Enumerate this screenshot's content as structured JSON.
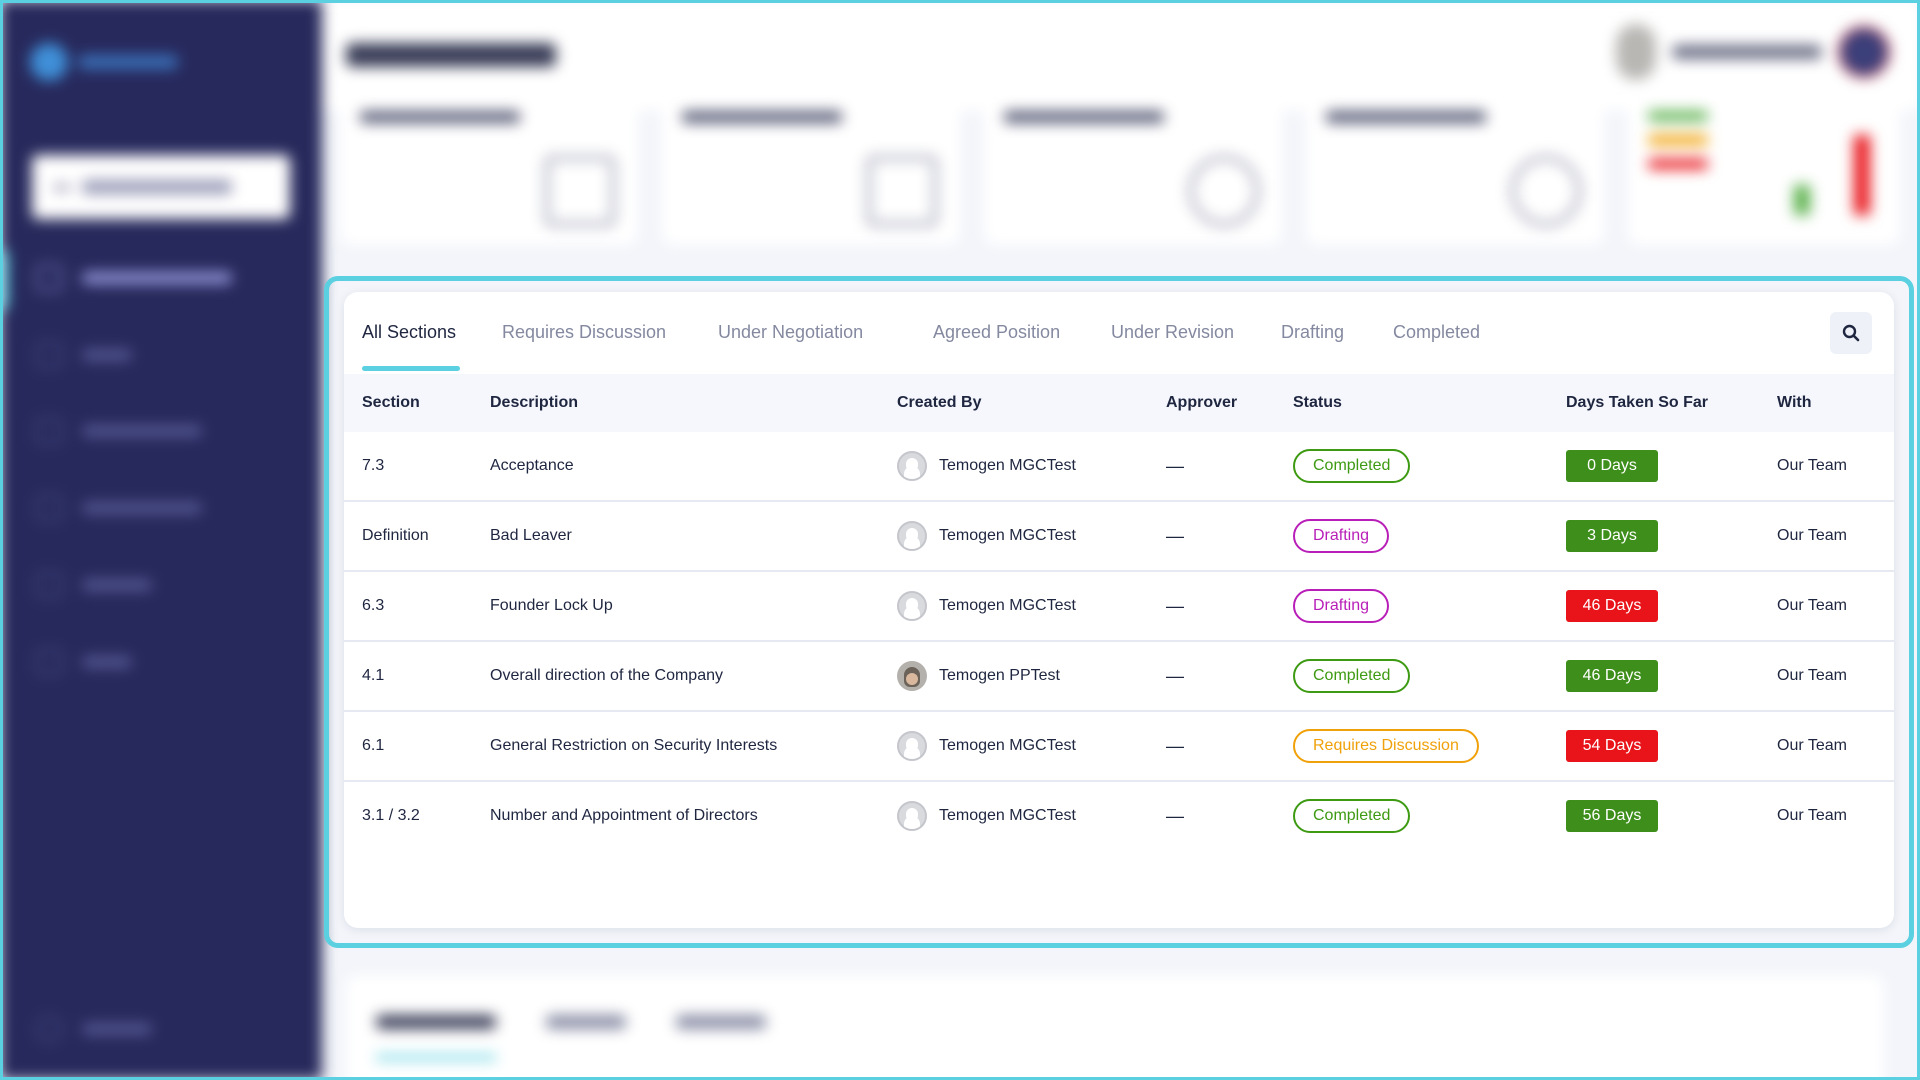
{
  "colors": {
    "accent": "#5ad0e0",
    "sidebar": "#27295c",
    "status_completed": "#3d9a12",
    "status_drafting": "#b81fb8",
    "status_requires_discussion": "#f0a10a",
    "days_green": "#3d8e1a",
    "days_red": "#e8141a"
  },
  "tabs": [
    {
      "label": "All Sections",
      "active": true
    },
    {
      "label": "Requires Discussion",
      "active": false
    },
    {
      "label": "Under Negotiation",
      "active": false
    },
    {
      "label": "Agreed Position",
      "active": false
    },
    {
      "label": "Under Revision",
      "active": false
    },
    {
      "label": "Drafting",
      "active": false
    },
    {
      "label": "Completed",
      "active": false
    }
  ],
  "search_icon": "search-icon",
  "columns": {
    "section": "Section",
    "description": "Description",
    "created_by": "Created By",
    "approver": "Approver",
    "status": "Status",
    "days": "Days Taken So Far",
    "with": "With"
  },
  "rows": [
    {
      "section": "7.3",
      "description": "Acceptance",
      "created_by": "Temogen MGCTest",
      "avatar": "generic",
      "approver": "—",
      "status": "Completed",
      "status_type": "completed",
      "days": "0 Days",
      "days_color": "green",
      "with": "Our Team"
    },
    {
      "section": "Definition",
      "description": "Bad Leaver",
      "created_by": "Temogen MGCTest",
      "avatar": "generic",
      "approver": "—",
      "status": "Drafting",
      "status_type": "drafting",
      "days": "3 Days",
      "days_color": "green",
      "with": "Our Team"
    },
    {
      "section": "6.3",
      "description": "Founder Lock Up",
      "created_by": "Temogen MGCTest",
      "avatar": "generic",
      "approver": "—",
      "status": "Drafting",
      "status_type": "drafting",
      "days": "46 Days",
      "days_color": "red",
      "with": "Our Team"
    },
    {
      "section": "4.1",
      "description": "Overall direction of the Company",
      "created_by": "Temogen PPTest",
      "avatar": "photo",
      "approver": "—",
      "status": "Completed",
      "status_type": "completed",
      "days": "46 Days",
      "days_color": "green",
      "with": "Our Team"
    },
    {
      "section": "6.1",
      "description": "General Restriction on Security Interests",
      "created_by": "Temogen MGCTest",
      "avatar": "generic",
      "approver": "—",
      "status": "Requires Discussion",
      "status_type": "requires_discussion",
      "days": "54 Days",
      "days_color": "red",
      "with": "Our Team"
    },
    {
      "section": "3.1 / 3.2",
      "description": "Number and Appointment of Directors",
      "created_by": "Temogen MGCTest",
      "avatar": "generic",
      "approver": "—",
      "status": "Completed",
      "status_type": "completed",
      "days": "56 Days",
      "days_color": "green",
      "with": "Our Team"
    }
  ]
}
